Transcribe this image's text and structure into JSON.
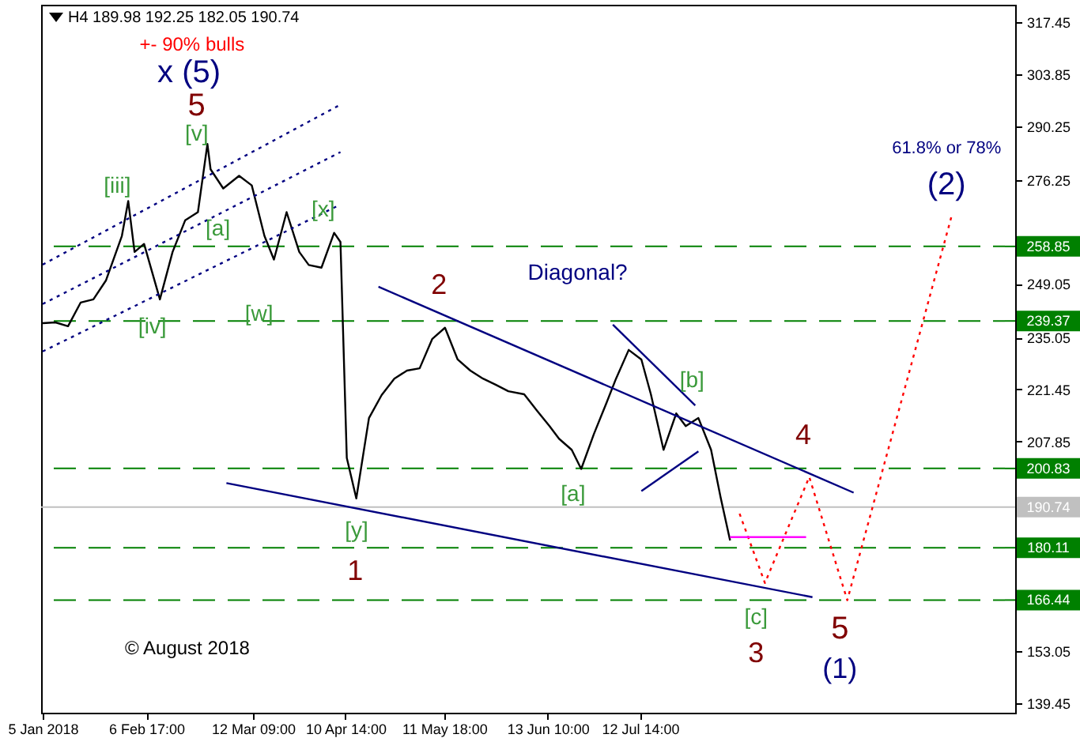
{
  "chart_data": {
    "type": "line",
    "title": "H4  189.98 192.25 182.05 190.74",
    "xlim": [
      "2018-01-04T12:00",
      "2018-11-08"
    ],
    "ylim": [
      137,
      322
    ],
    "xticks": [
      {
        "value": "2018-01-05",
        "label": "5 Jan 2018"
      },
      {
        "value": "2018-02-06T17:00",
        "label": "6 Feb 17:00"
      },
      {
        "value": "2018-03-12T09:00",
        "label": "12 Mar 09:00"
      },
      {
        "value": "2018-04-10T14:00",
        "label": "10 Apr 14:00"
      },
      {
        "value": "2018-05-11T18:00",
        "label": "11 May 18:00"
      },
      {
        "value": "2018-06-13T10:00",
        "label": "13 Jun 10:00"
      },
      {
        "value": "2018-07-12T14:00",
        "label": "12 Jul 14:00"
      }
    ],
    "yticks": [
      139.45,
      153.05,
      207.85,
      221.45,
      235.05,
      249.05,
      276.25,
      290.25,
      303.85,
      317.45
    ],
    "series": [
      {
        "color": "#000000",
        "line_style": "solid",
        "x": [
          "2018-01-05",
          "2018-01-09",
          "2018-01-13",
          "2018-01-17",
          "2018-01-21",
          "2018-01-25",
          "2018-01-30",
          "2018-02-01",
          "2018-02-03",
          "2018-02-06",
          "2018-02-11",
          "2018-02-15",
          "2018-02-19",
          "2018-02-23",
          "2018-02-26",
          "2018-02-27",
          "2018-03-03",
          "2018-03-08",
          "2018-03-12",
          "2018-03-16",
          "2018-03-19",
          "2018-03-23",
          "2018-03-27",
          "2018-03-30",
          "2018-04-03",
          "2018-04-07",
          "2018-04-09",
          "2018-04-11",
          "2018-04-14",
          "2018-04-18",
          "2018-04-22",
          "2018-04-26",
          "2018-04-30",
          "2018-05-04",
          "2018-05-08",
          "2018-05-12",
          "2018-05-16",
          "2018-05-20",
          "2018-05-24",
          "2018-05-28",
          "2018-06-01",
          "2018-06-06",
          "2018-06-10",
          "2018-06-14",
          "2018-06-17",
          "2018-06-21",
          "2018-06-24",
          "2018-06-28",
          "2018-07-02",
          "2018-07-05",
          "2018-07-09",
          "2018-07-13",
          "2018-07-16",
          "2018-07-20",
          "2018-07-24",
          "2018-07-27",
          "2018-07-31",
          "2018-08-04",
          "2018-08-07",
          "2018-08-10"
        ],
        "values": [
          238.8,
          239,
          238,
          244.2,
          245,
          250,
          261.6,
          270.7,
          257.4,
          259.5,
          245,
          257.4,
          265.7,
          267.8,
          285.6,
          279,
          274,
          277.3,
          274.8,
          261.6,
          255.4,
          267.8,
          257.4,
          254,
          253.3,
          262.4,
          260,
          203.6,
          193,
          214,
          220,
          224.3,
          226.4,
          227,
          234.7,
          237.6,
          229.3,
          226.4,
          224.3,
          222.7,
          221,
          220.2,
          216,
          211.9,
          208.6,
          205.7,
          200.7,
          209.8,
          218,
          224.3,
          231.8,
          229.3,
          220.2,
          205.7,
          215.2,
          211.9,
          214,
          205.7,
          193.3,
          182
        ]
      },
      {
        "color": "#ff0000",
        "line_style": "dotted",
        "x": [
          "2018-08-13",
          "2018-08-21",
          "2018-09-04",
          "2018-09-16",
          "2018-10-19"
        ],
        "values": [
          189,
          170.9,
          198.6,
          166.4,
          267
        ]
      },
      {
        "color": "#000080",
        "line_style": "dotted",
        "x": [
          "2018-01-05",
          "2018-04-09"
        ],
        "values": [
          254.1,
          295.9
        ]
      },
      {
        "color": "#000080",
        "line_style": "dotted",
        "x": [
          "2018-01-05",
          "2018-04-09"
        ],
        "values": [
          243.8,
          283.5
        ]
      },
      {
        "color": "#000080",
        "line_style": "dotted",
        "x": [
          "2018-01-05",
          "2018-04-08"
        ],
        "values": [
          231.4,
          269.4
        ]
      },
      {
        "color": "#000080",
        "line_style": "solid",
        "x": [
          "2018-04-21",
          "2018-09-18"
        ],
        "values": [
          248.3,
          194.5
        ]
      },
      {
        "color": "#000080",
        "line_style": "solid",
        "x": [
          "2018-03-04",
          "2018-09-05"
        ],
        "values": [
          197,
          167.2
        ]
      },
      {
        "color": "#000080",
        "line_style": "solid",
        "x": [
          "2018-07-04",
          "2018-07-30"
        ],
        "values": [
          238.4,
          217.3
        ]
      },
      {
        "color": "#000080",
        "line_style": "solid",
        "x": [
          "2018-07-13",
          "2018-07-31"
        ],
        "values": [
          194.9,
          205.3
        ]
      },
      {
        "color": "#ff00ff",
        "line_style": "solid",
        "x": [
          "2018-08-10",
          "2018-09-03"
        ],
        "values": [
          182.9,
          182.9
        ]
      }
    ],
    "ref_lines": [
      {
        "axis": "y",
        "value": 258.85,
        "label": "258.85",
        "color": "#008000",
        "line_style": "dashed"
      },
      {
        "axis": "y",
        "value": 239.37,
        "label": "239.37",
        "color": "#008000",
        "line_style": "dashed"
      },
      {
        "axis": "y",
        "value": 200.83,
        "label": "200.83",
        "color": "#008000",
        "line_style": "dashed"
      },
      {
        "axis": "y",
        "value": 190.74,
        "label": "190.74",
        "color": "#c0c0c0",
        "line_style": "solid"
      },
      {
        "axis": "y",
        "value": 180.11,
        "label": "180.11",
        "color": "#008000",
        "line_style": "dashed"
      },
      {
        "axis": "y",
        "value": 166.44,
        "label": "166.44",
        "color": "#008000",
        "line_style": "dashed"
      }
    ],
    "annotations": [
      "+- 90% bulls",
      "x (5)",
      "5",
      "[v]",
      "[iii]",
      "[a]",
      "[x]",
      "[iv]",
      "[w]",
      "2",
      "Diagonal?",
      "[b]",
      "4",
      "[a]",
      "[y]",
      "1",
      "[c]",
      "3",
      "5",
      "(1)",
      "(2)",
      "61.8% or 78%",
      "© August 2018"
    ]
  }
}
